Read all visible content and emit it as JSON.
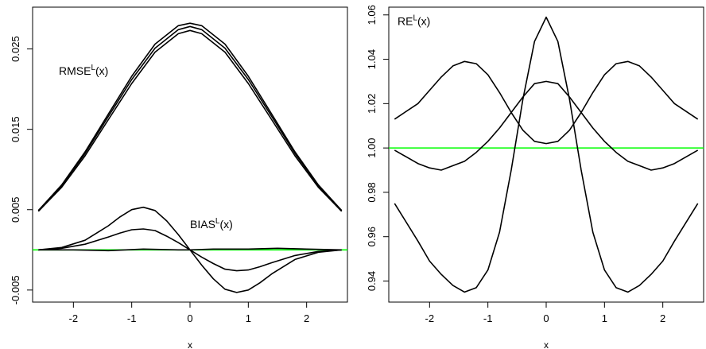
{
  "colors": {
    "line": "#000000",
    "reference": "#00ff00",
    "frame": "#000000"
  },
  "chart_data": [
    {
      "type": "line",
      "title": "",
      "xlabel": "x",
      "ylabel": "",
      "xlim": [
        -2.7,
        2.7
      ],
      "ylim": [
        -0.0065,
        0.0302
      ],
      "x_ticks": [
        -2,
        -1,
        0,
        1,
        2
      ],
      "x_tick_labels": [
        "-2",
        "-1",
        "0",
        "1",
        "2"
      ],
      "y_ticks": [
        -0.005,
        0.005,
        0.015,
        0.025
      ],
      "y_tick_labels": [
        "-0.005",
        "0.005",
        "0.015",
        "0.025"
      ],
      "reference_line": 0,
      "annotations": [
        {
          "base": "RMSE",
          "sup": "L",
          "suffix": "(x)",
          "x": -2.25,
          "y": 0.0218
        },
        {
          "base": "BIAS",
          "sup": "L",
          "suffix": "(x)",
          "x": 0.0,
          "y": 0.0027
        }
      ],
      "series": [
        {
          "x": [
            -2.6,
            -2.2,
            -1.8,
            -1.4,
            -1.0,
            -0.6,
            -0.2,
            0.0,
            0.2,
            0.6,
            1.0,
            1.4,
            1.8,
            2.2,
            2.6
          ],
          "values": [
            0.0049,
            0.0081,
            0.0122,
            0.0169,
            0.0216,
            0.0256,
            0.0279,
            0.0282,
            0.0279,
            0.0256,
            0.0216,
            0.0169,
            0.0122,
            0.0081,
            0.0049
          ]
        },
        {
          "x": [
            -2.6,
            -2.2,
            -1.8,
            -1.4,
            -1.0,
            -0.6,
            -0.2,
            0.0,
            0.2,
            0.6,
            1.0,
            1.4,
            1.8,
            2.2,
            2.6
          ],
          "values": [
            0.0049,
            0.008,
            0.012,
            0.0166,
            0.0212,
            0.0251,
            0.0274,
            0.0278,
            0.0274,
            0.0251,
            0.0212,
            0.0166,
            0.012,
            0.008,
            0.0049
          ]
        },
        {
          "x": [
            -2.6,
            -2.2,
            -1.8,
            -1.4,
            -1.0,
            -0.6,
            -0.2,
            0.0,
            0.2,
            0.6,
            1.0,
            1.4,
            1.8,
            2.2,
            2.6
          ],
          "values": [
            0.0048,
            0.0078,
            0.0117,
            0.0162,
            0.0207,
            0.0246,
            0.0269,
            0.0273,
            0.0269,
            0.0246,
            0.0207,
            0.0162,
            0.0117,
            0.0078,
            0.0048
          ]
        },
        {
          "x": [
            -2.6,
            -2.2,
            -1.8,
            -1.4,
            -1.2,
            -1.0,
            -0.8,
            -0.6,
            -0.4,
            -0.2,
            0.0,
            0.2,
            0.4,
            0.6,
            0.8,
            1.0,
            1.2,
            1.4,
            1.8,
            2.2,
            2.6
          ],
          "values": [
            0.0,
            0.0003,
            0.0012,
            0.003,
            0.0041,
            0.005,
            0.0053,
            0.0049,
            0.0036,
            0.0019,
            0.0,
            -0.0019,
            -0.0036,
            -0.0049,
            -0.0053,
            -0.005,
            -0.0041,
            -0.003,
            -0.0012,
            -0.0003,
            0.0
          ]
        },
        {
          "x": [
            -2.6,
            -2.2,
            -1.8,
            -1.4,
            -1.2,
            -1.0,
            -0.8,
            -0.6,
            -0.4,
            -0.2,
            0.0,
            0.2,
            0.4,
            0.6,
            0.8,
            1.0,
            1.2,
            1.4,
            1.8,
            2.2,
            2.6
          ],
          "values": [
            0.0,
            0.0002,
            0.0007,
            0.0016,
            0.0021,
            0.0025,
            0.0026,
            0.0024,
            0.0017,
            0.0009,
            0.0,
            -0.0009,
            -0.0017,
            -0.0024,
            -0.0026,
            -0.0025,
            -0.0021,
            -0.0016,
            -0.0007,
            -0.0002,
            0.0
          ]
        },
        {
          "x": [
            -2.6,
            -2.0,
            -1.4,
            -0.8,
            -0.2,
            0.0,
            0.4,
            1.0,
            1.5,
            2.0,
            2.6
          ],
          "values": [
            0.0,
            0.0,
            -0.0001,
            0.0001,
            0.0,
            0.0,
            0.0001,
            0.0001,
            0.0002,
            0.0001,
            0.0
          ]
        }
      ]
    },
    {
      "type": "line",
      "title": "",
      "xlabel": "x",
      "ylabel": "",
      "xlim": [
        -2.7,
        2.7
      ],
      "ylim": [
        0.9305,
        1.0635
      ],
      "x_ticks": [
        -2,
        -1,
        0,
        1,
        2
      ],
      "x_tick_labels": [
        "-2",
        "-1",
        "0",
        "1",
        "2"
      ],
      "y_ticks": [
        0.94,
        0.96,
        0.98,
        1.0,
        1.02,
        1.04,
        1.06
      ],
      "y_tick_labels": [
        "0.94",
        "0.96",
        "0.98",
        "1.00",
        "1.02",
        "1.04",
        "1.06"
      ],
      "reference_line": 1.0,
      "annotations": [
        {
          "base": "RE",
          "sup": "L",
          "suffix": "(x)",
          "x": -2.55,
          "y": 1.0555
        }
      ],
      "series": [
        {
          "x": [
            -2.6,
            -2.2,
            -2.0,
            -1.8,
            -1.6,
            -1.4,
            -1.2,
            -1.0,
            -0.8,
            -0.6,
            -0.4,
            -0.2,
            0.0,
            0.2,
            0.4,
            0.6,
            0.8,
            1.0,
            1.2,
            1.4,
            1.6,
            1.8,
            2.0,
            2.2,
            2.6
          ],
          "values": [
            0.975,
            0.958,
            0.949,
            0.943,
            0.938,
            0.935,
            0.937,
            0.945,
            0.962,
            0.99,
            1.022,
            1.048,
            1.059,
            1.048,
            1.022,
            0.99,
            0.962,
            0.945,
            0.937,
            0.935,
            0.938,
            0.943,
            0.949,
            0.958,
            0.975
          ]
        },
        {
          "x": [
            -2.6,
            -2.2,
            -2.0,
            -1.8,
            -1.6,
            -1.4,
            -1.2,
            -1.0,
            -0.8,
            -0.6,
            -0.4,
            -0.2,
            0.0,
            0.2,
            0.4,
            0.6,
            0.8,
            1.0,
            1.2,
            1.4,
            1.6,
            1.8,
            2.0,
            2.2,
            2.6
          ],
          "values": [
            1.013,
            1.02,
            1.026,
            1.032,
            1.037,
            1.039,
            1.038,
            1.033,
            1.025,
            1.016,
            1.008,
            1.003,
            1.002,
            1.003,
            1.008,
            1.016,
            1.025,
            1.033,
            1.038,
            1.039,
            1.037,
            1.032,
            1.026,
            1.02,
            1.013
          ]
        },
        {
          "x": [
            -2.6,
            -2.2,
            -2.0,
            -1.8,
            -1.6,
            -1.4,
            -1.2,
            -1.0,
            -0.8,
            -0.6,
            -0.4,
            -0.2,
            0.0,
            0.2,
            0.4,
            0.6,
            0.8,
            1.0,
            1.2,
            1.4,
            1.6,
            1.8,
            2.0,
            2.2,
            2.6
          ],
          "values": [
            0.999,
            0.993,
            0.991,
            0.99,
            0.992,
            0.994,
            0.998,
            1.003,
            1.009,
            1.016,
            1.023,
            1.029,
            1.03,
            1.029,
            1.023,
            1.016,
            1.009,
            1.003,
            0.998,
            0.994,
            0.992,
            0.99,
            0.991,
            0.993,
            0.999
          ]
        }
      ]
    }
  ]
}
